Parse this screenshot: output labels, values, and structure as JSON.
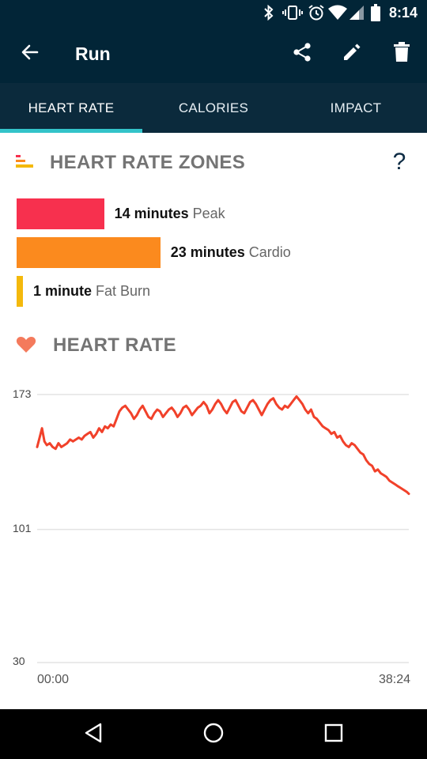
{
  "status_bar": {
    "time": "8:14",
    "icons": [
      "bluetooth-icon",
      "vibrate-icon",
      "alarm-icon",
      "wifi-icon",
      "signal-icon",
      "battery-icon"
    ]
  },
  "app_bar": {
    "title": "Run",
    "actions": [
      "share-icon",
      "edit-icon",
      "delete-icon"
    ]
  },
  "tabs": [
    {
      "label": "HEART RATE",
      "active": true
    },
    {
      "label": "CALORIES",
      "active": false
    },
    {
      "label": "IMPACT",
      "active": false
    }
  ],
  "zones_section": {
    "title": "HEART RATE ZONES",
    "help": "?",
    "zones": [
      {
        "amount": "14 minutes",
        "label": "Peak",
        "minutes": 14,
        "color": "#f7304e"
      },
      {
        "amount": "23 minutes",
        "label": "Cardio",
        "minutes": 23,
        "color": "#fb8a1e"
      },
      {
        "amount": "1 minute",
        "label": "Fat Burn",
        "minutes": 1,
        "color": "#f4b90c"
      }
    ]
  },
  "heart_rate_section": {
    "title": "HEART RATE",
    "icon_color": "#f47a5c"
  },
  "chart_data": {
    "type": "line",
    "yticks": [
      173,
      101,
      30
    ],
    "ylim": [
      30,
      173
    ],
    "xticks": [
      "00:00",
      "38:24"
    ],
    "xlim": [
      0,
      38.4
    ],
    "grid": true,
    "series": [
      {
        "color": "#f1412a",
        "x": [
          0.0,
          0.25,
          0.5,
          0.75,
          1.0,
          1.3,
          1.6,
          1.9,
          2.2,
          2.5,
          2.8,
          3.1,
          3.4,
          3.7,
          4.0,
          4.3,
          4.6,
          4.9,
          5.2,
          5.5,
          5.8,
          6.1,
          6.4,
          6.7,
          7.0,
          7.3,
          7.6,
          7.9,
          8.2,
          8.5,
          8.8,
          9.1,
          9.4,
          9.7,
          10.0,
          10.3,
          10.6,
          10.9,
          11.2,
          11.5,
          11.8,
          12.1,
          12.4,
          12.7,
          13.0,
          13.3,
          13.6,
          13.9,
          14.2,
          14.5,
          14.8,
          15.1,
          15.4,
          15.7,
          16.0,
          16.3,
          16.6,
          16.9,
          17.2,
          17.5,
          17.8,
          18.1,
          18.4,
          18.7,
          19.0,
          19.3,
          19.6,
          19.9,
          20.2,
          20.5,
          20.8,
          21.1,
          21.4,
          21.7,
          22.0,
          22.3,
          22.6,
          22.9,
          23.2,
          23.5,
          23.8,
          24.1,
          24.4,
          24.7,
          25.0,
          25.3,
          25.6,
          25.9,
          26.2,
          26.5,
          26.8,
          27.1,
          27.4,
          27.7,
          28.0,
          28.3,
          28.6,
          28.9,
          29.2,
          29.5,
          29.8,
          30.1,
          30.4,
          30.7,
          31.0,
          31.3,
          31.6,
          31.9,
          32.2,
          32.5,
          32.8,
          33.1,
          33.4,
          33.7,
          34.0,
          34.3,
          34.6,
          34.9,
          35.2,
          35.5,
          35.8,
          36.1,
          36.4,
          36.7,
          37.0,
          37.3,
          37.6,
          37.9,
          38.2,
          38.4
        ],
        "y": [
          145,
          150,
          155,
          148,
          146,
          147,
          145,
          144,
          147,
          145,
          146,
          147,
          149,
          148,
          149,
          150,
          149,
          151,
          152,
          153,
          150,
          152,
          155,
          153,
          156,
          155,
          157,
          156,
          160,
          164,
          166,
          167,
          165,
          163,
          160,
          162,
          165,
          167,
          164,
          161,
          160,
          163,
          165,
          164,
          161,
          163,
          165,
          166,
          164,
          161,
          163,
          166,
          167,
          165,
          162,
          164,
          166,
          167,
          169,
          167,
          163,
          165,
          168,
          170,
          168,
          165,
          163,
          166,
          169,
          170,
          167,
          164,
          163,
          166,
          169,
          170,
          168,
          165,
          162,
          165,
          168,
          170,
          171,
          168,
          166,
          165,
          167,
          166,
          168,
          170,
          172,
          170,
          168,
          165,
          163,
          165,
          161,
          160,
          158,
          156,
          155,
          154,
          152,
          153,
          150,
          151,
          148,
          146,
          145,
          147,
          146,
          144,
          142,
          141,
          138,
          136,
          135,
          132,
          133,
          131,
          130,
          129,
          127,
          126,
          125,
          124,
          123,
          122,
          121,
          120
        ]
      }
    ]
  },
  "nav_bar": {
    "buttons": [
      "back-nav-icon",
      "home-nav-icon",
      "recents-nav-icon"
    ]
  }
}
